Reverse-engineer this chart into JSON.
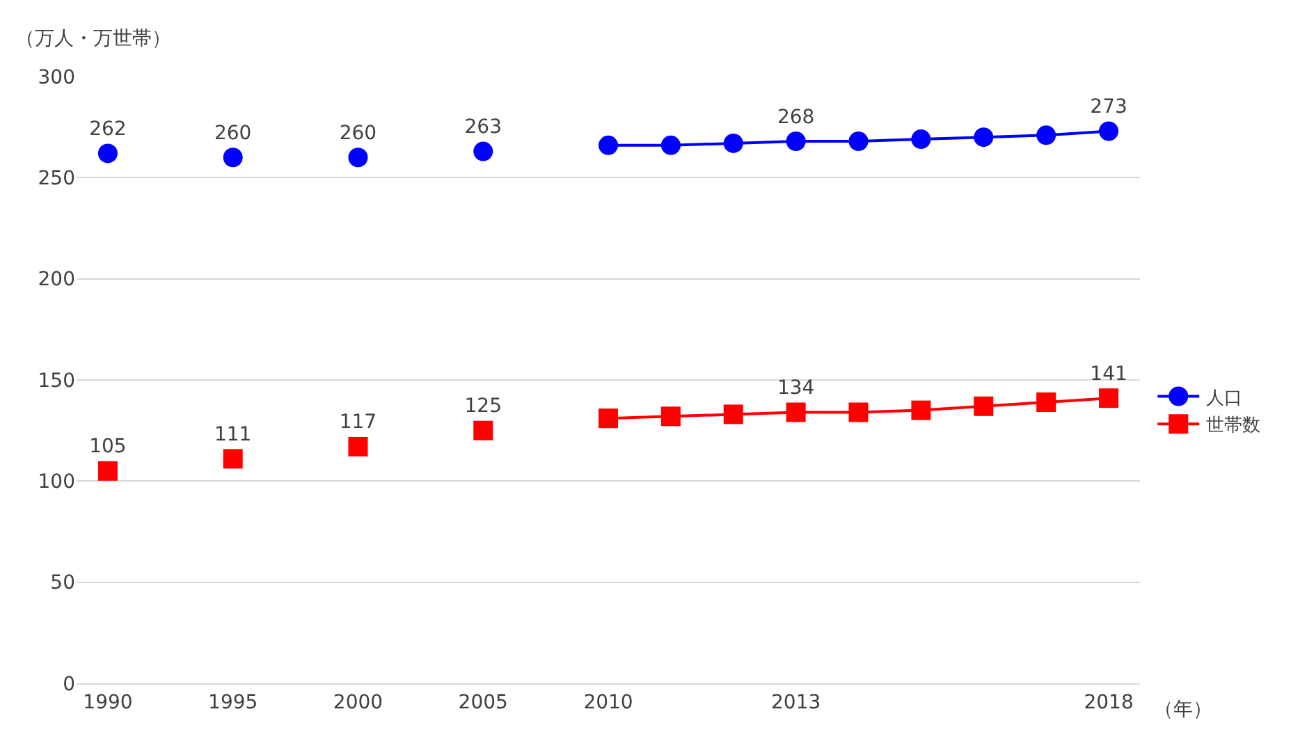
{
  "chart_data": {
    "type": "line",
    "ylabel": "（万人・万世帯）",
    "xlabel": "（年）",
    "categories": [
      "1990",
      null,
      "1995",
      null,
      "2000",
      null,
      "2005",
      null,
      "2010",
      null,
      null,
      "2013",
      null,
      null,
      null,
      null,
      "2018"
    ],
    "series": [
      {
        "name": "人口",
        "color": "#0000ff",
        "marker": "circle",
        "values": [
          262,
          null,
          260,
          null,
          260,
          null,
          263,
          null,
          266,
          266,
          267,
          268,
          268,
          269,
          270,
          271,
          273
        ],
        "value_labels": [
          "262",
          null,
          "260",
          null,
          "260",
          null,
          "263",
          null,
          null,
          null,
          null,
          "268",
          null,
          null,
          null,
          null,
          "273"
        ]
      },
      {
        "name": "世帯数",
        "color": "#ff0000",
        "marker": "square",
        "values": [
          105,
          null,
          111,
          null,
          117,
          null,
          125,
          null,
          131,
          132,
          133,
          134,
          134,
          135,
          137,
          139,
          141
        ],
        "value_labels": [
          "105",
          null,
          "111",
          null,
          "117",
          null,
          "125",
          null,
          null,
          null,
          null,
          "134",
          null,
          null,
          null,
          null,
          "141"
        ]
      }
    ],
    "ylim": [
      0,
      300
    ],
    "yticks": [
      0,
      50,
      100,
      150,
      200,
      250,
      300
    ],
    "grid": "y",
    "legend": "right"
  }
}
